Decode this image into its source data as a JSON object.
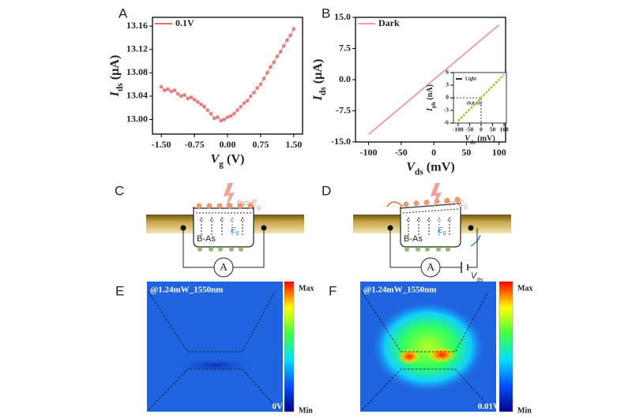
{
  "chart_data": [
    {
      "type": "line",
      "panel": "A",
      "markers": true,
      "x": [
        -1.5,
        -1.425,
        -1.35,
        -1.275,
        -1.2,
        -1.125,
        -1.05,
        -0.975,
        -0.9,
        -0.825,
        -0.75,
        -0.675,
        -0.6,
        -0.525,
        -0.45,
        -0.375,
        -0.3,
        -0.225,
        -0.15,
        -0.075,
        0,
        0.075,
        0.15,
        0.225,
        0.3,
        0.375,
        0.45,
        0.525,
        0.6,
        0.675,
        0.75,
        0.825,
        0.9,
        0.975,
        1.05,
        1.125,
        1.2,
        1.275,
        1.35,
        1.425,
        1.5
      ],
      "series": [
        {
          "name": "0.1V",
          "color": "#e07070",
          "values": [
            13.056,
            13.05,
            13.052,
            13.048,
            13.05,
            13.044,
            13.04,
            13.042,
            13.036,
            13.038,
            13.034,
            13.03,
            13.026,
            13.022,
            13.016,
            13.01,
            13.002,
            13.004,
            12.998,
            13.0,
            13.004,
            13.006,
            13.01,
            13.016,
            13.022,
            13.028,
            13.032,
            13.04,
            13.046,
            13.054,
            13.06,
            13.07,
            13.08,
            13.09,
            13.098,
            13.108,
            13.116,
            13.126,
            13.136,
            13.144,
            13.155
          ]
        }
      ],
      "xlim": [
        -1.7,
        1.7
      ],
      "ylim": [
        12.975,
        13.175
      ],
      "xticks": [
        {
          "value": -1.5,
          "label": "-1.50"
        },
        {
          "value": -0.75,
          "label": "-0.75"
        },
        {
          "value": 0,
          "label": "0.00"
        },
        {
          "value": 0.75,
          "label": "0.75"
        },
        {
          "value": 1.5,
          "label": "1.50"
        }
      ],
      "yticks": [
        {
          "value": 13,
          "label": "13.00"
        },
        13.04,
        13.08,
        13.12,
        13.16
      ],
      "x_label": {
        "main": "V",
        "sub": "g",
        "unit": " (V)"
      },
      "y_label": {
        "main": "I",
        "sub": "ds",
        "unit": " (μA)"
      },
      "legend": "upper left"
    },
    {
      "type": "line",
      "panel": "B",
      "markers": false,
      "x": [
        -100,
        100
      ],
      "series": [
        {
          "name": "Dark",
          "color": "#eba3a3",
          "values": [
            -13.2,
            13.2
          ]
        }
      ],
      "xlim": [
        -120,
        110
      ],
      "ylim": [
        -15,
        15
      ],
      "xticks": [
        -100,
        -50,
        0,
        50,
        100
      ],
      "yticks": [
        {
          "value": -15,
          "label": "-15.0"
        },
        -7.5,
        {
          "value": 0,
          "label": "0.0"
        },
        7.5,
        {
          "value": 15,
          "label": "15.0"
        }
      ],
      "x_label": {
        "main": "V",
        "sub": "ds",
        "unit": " (mV)"
      },
      "y_label": {
        "main": "I",
        "sub": "ds",
        "unit": " (μA)"
      },
      "legend": "upper left"
    },
    {
      "type": "line",
      "markers": false,
      "inset": true,
      "x": [
        -100,
        100
      ],
      "series": [
        {
          "name": "Light",
          "color": "#9acd32",
          "values": [
            -5.5,
            5.5
          ]
        }
      ],
      "xlim": [
        -120,
        110
      ],
      "ylim": [
        -6,
        6
      ],
      "xticks": [
        -100,
        -50,
        0,
        50,
        100
      ],
      "yticks": [
        -6,
        -3,
        0,
        3,
        6
      ],
      "x_label": {
        "main": "V",
        "sub": "ds",
        "unit": " (mV)"
      },
      "y_label": {
        "main": "I",
        "sub": "ph",
        "unit": " (nA)"
      },
      "annotation": "(0,0.05)",
      "legend": "upper left"
    }
  ],
  "panels": {
    "C": {
      "label": "C",
      "light": {
        "main": "hv>E",
        "sub": "g"
      },
      "material": "B-As",
      "gap": {
        "main": "E",
        "sub": "g"
      },
      "meter": "A"
    },
    "D": {
      "label": "D",
      "light": {
        "main": "hv>E",
        "sub": "0"
      },
      "material": "B-As",
      "gap": {
        "main": "E",
        "sub": "g"
      },
      "meter": "A",
      "bias": {
        "main": "V",
        "sub": "ds"
      }
    },
    "E": {
      "label": "E",
      "condition": "@1.24mW_1550nm",
      "max": "Max",
      "min": "Min",
      "bias": "0V"
    },
    "F": {
      "label": "F",
      "condition": "@1.24mW_1550nm",
      "max": "Max",
      "min": "Min",
      "bias": "0.01V"
    }
  }
}
